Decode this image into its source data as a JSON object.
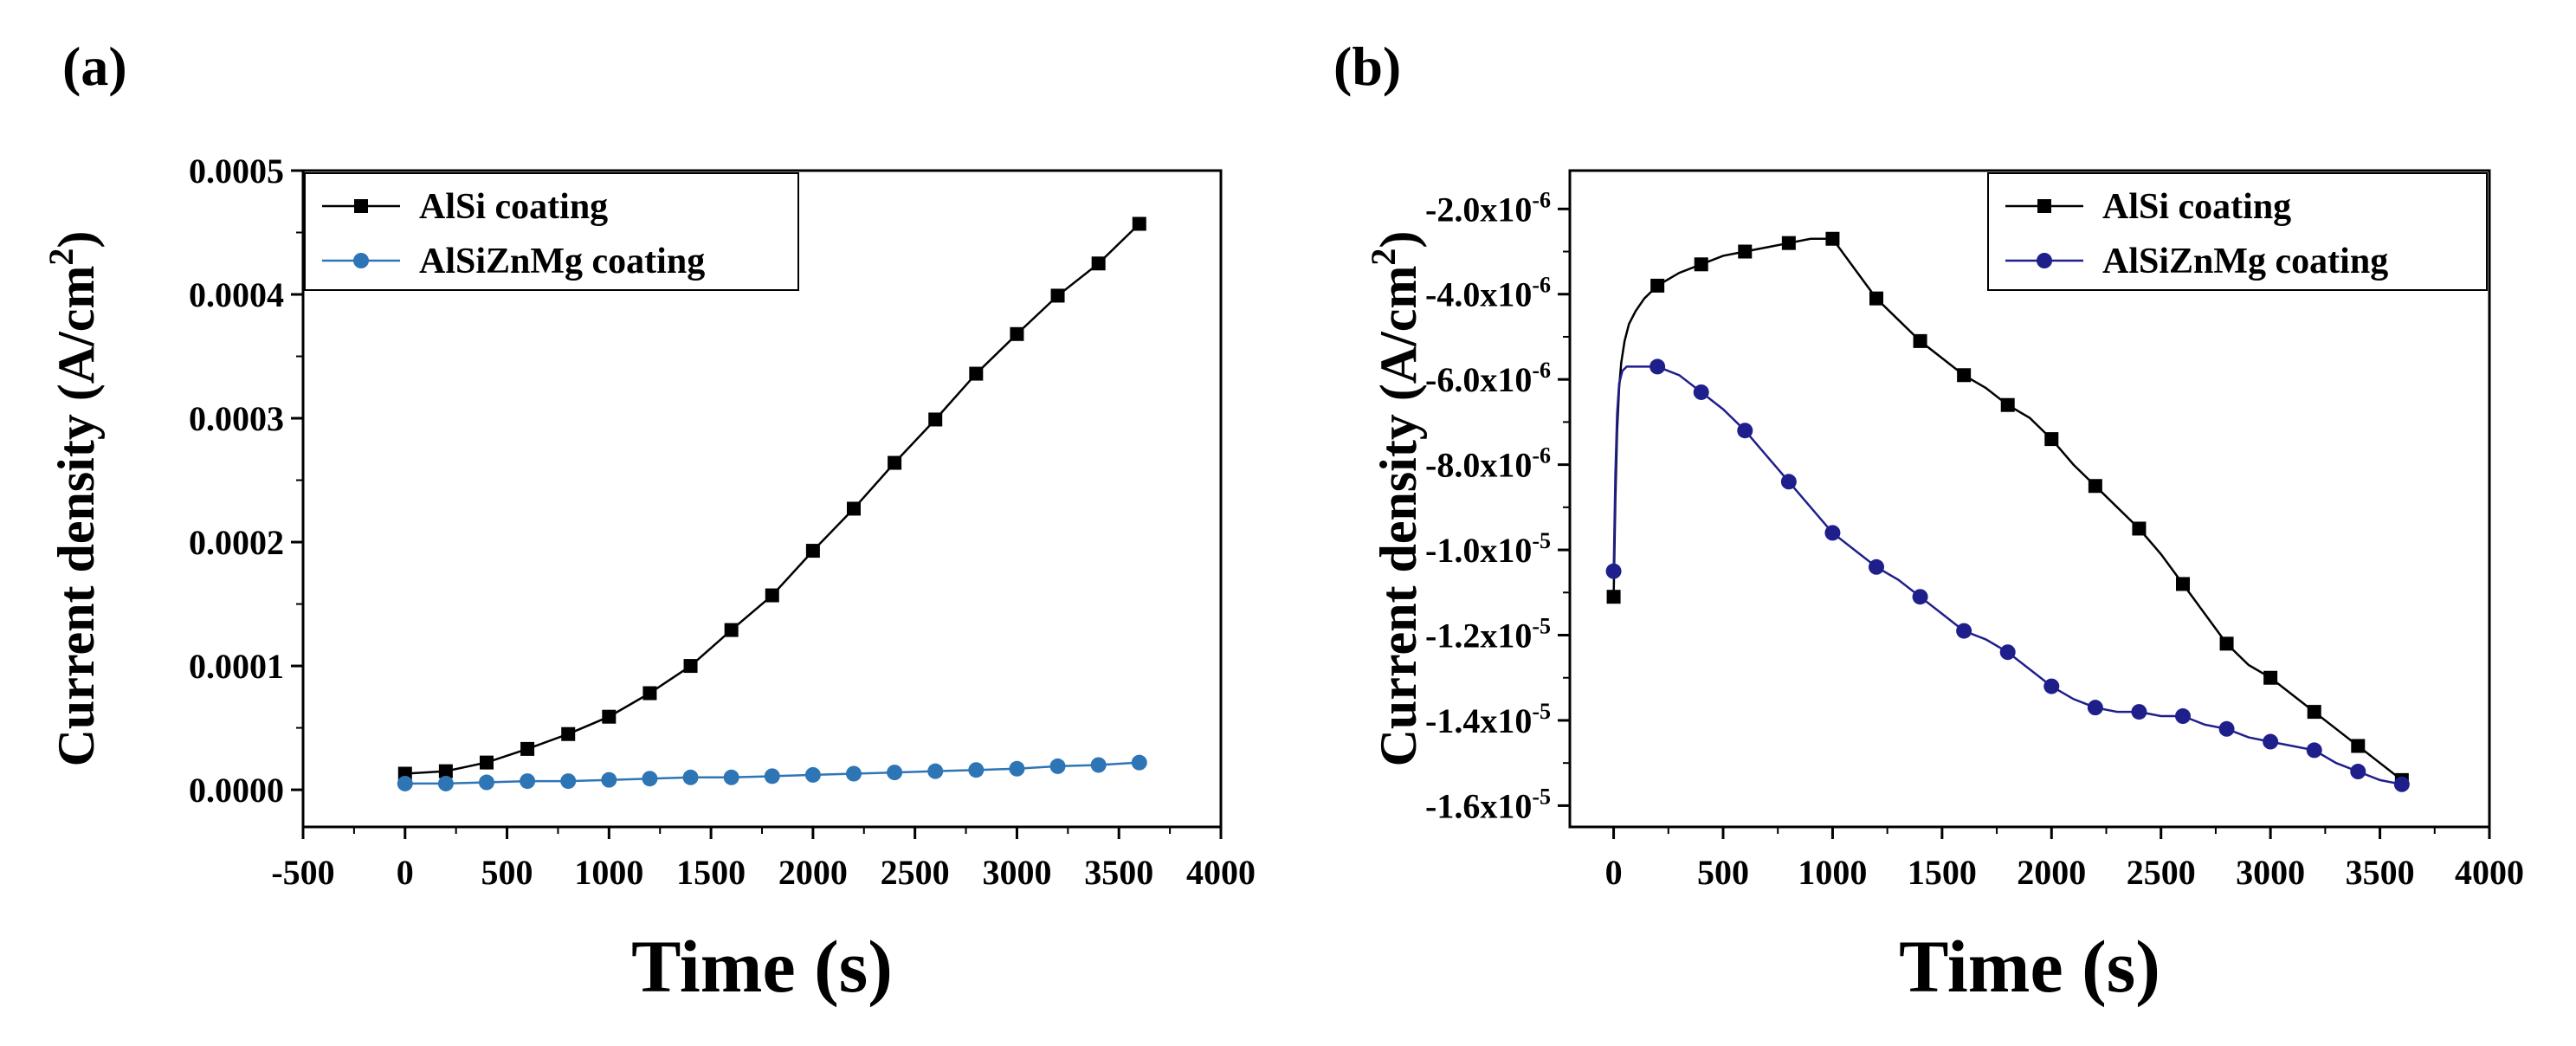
{
  "chart_data": [
    {
      "panel_label": "(a)",
      "type": "line",
      "xlabel": "Time (s)",
      "ylabel": "Current density (A/cm",
      "ylabel_sup": "2",
      "ylabel_close": ")",
      "xlim": [
        -500,
        4000
      ],
      "ylim": [
        -3e-05,
        0.0005
      ],
      "xticks": [
        -500,
        0,
        500,
        1000,
        1500,
        2000,
        2500,
        3000,
        3500,
        4000
      ],
      "xtick_labels": [
        "-500",
        "0",
        "500",
        "1000",
        "1500",
        "2000",
        "2500",
        "3000",
        "3500",
        "4000"
      ],
      "yticks": [
        0,
        0.0001,
        0.0002,
        0.0003,
        0.0004,
        0.0005
      ],
      "ytick_labels": [
        "0.0000",
        "0.0001",
        "0.0002",
        "0.0003",
        "0.0004",
        "0.0005"
      ],
      "legend_position": "top-left",
      "series": [
        {
          "name": "AlSi coating",
          "color": "#000000",
          "marker": "square",
          "x": [
            0,
            200,
            400,
            600,
            800,
            1000,
            1200,
            1400,
            1600,
            1800,
            2000,
            2200,
            2400,
            2600,
            2800,
            3000,
            3200,
            3400,
            3600
          ],
          "y": [
            1.3e-05,
            1.5e-05,
            2.2e-05,
            3.3e-05,
            4.5e-05,
            5.9e-05,
            7.8e-05,
            0.0001,
            0.000129,
            0.000157,
            0.000193,
            0.000227,
            0.000264,
            0.000299,
            0.000336,
            0.000368,
            0.000399,
            0.000425,
            0.000457
          ]
        },
        {
          "name": "AlSiZnMg coating",
          "color": "#2e75b6",
          "marker": "circle",
          "x": [
            0,
            200,
            400,
            600,
            800,
            1000,
            1200,
            1400,
            1600,
            1800,
            2000,
            2200,
            2400,
            2600,
            2800,
            3000,
            3200,
            3400,
            3600
          ],
          "y": [
            5e-06,
            5e-06,
            6e-06,
            7e-06,
            7e-06,
            8e-06,
            9e-06,
            1e-05,
            1e-05,
            1.1e-05,
            1.2e-05,
            1.3e-05,
            1.4e-05,
            1.5e-05,
            1.6e-05,
            1.7e-05,
            1.9e-05,
            2e-05,
            2.2e-05
          ]
        }
      ]
    },
    {
      "panel_label": "(b)",
      "type": "line",
      "xlabel": "Time (s)",
      "ylabel": "Current density (A/cm",
      "ylabel_sup": "2",
      "ylabel_close": ")",
      "xlim": [
        -200,
        4000
      ],
      "ylim": [
        -1.65e-05,
        -1.1e-06
      ],
      "xticks": [
        0,
        500,
        1000,
        1500,
        2000,
        2500,
        3000,
        3500,
        4000
      ],
      "xtick_labels": [
        "0",
        "500",
        "1000",
        "1500",
        "2000",
        "2500",
        "3000",
        "3500",
        "4000"
      ],
      "yticks": [
        -2e-06,
        -4e-06,
        -6e-06,
        -8e-06,
        -1e-05,
        -1.2e-05,
        -1.4e-05,
        -1.6e-05
      ],
      "ytick_mantissa": [
        "-2.0x10",
        "-4.0x10",
        "-6.0x10",
        "-8.0x10",
        "-1.0x10",
        "-1.2x10",
        "-1.4x10",
        "-1.6x10"
      ],
      "ytick_exponent": [
        "-6",
        "-6",
        "-6",
        "-6",
        "-5",
        "-5",
        "-5",
        "-5"
      ],
      "legend_position": "top-right",
      "series": [
        {
          "name": "AlSi coating",
          "color": "#000000",
          "marker": "square",
          "x": [
            0,
            200,
            400,
            600,
            800,
            1000,
            1200,
            1400,
            1600,
            1800,
            2000,
            2200,
            2400,
            2600,
            2800,
            3000,
            3200,
            3400,
            3600
          ],
          "y": [
            -1.11e-05,
            -3.8e-06,
            -3.3e-06,
            -3e-06,
            -2.8e-06,
            -2.7e-06,
            -4.1e-06,
            -5.1e-06,
            -5.9e-06,
            -6.6e-06,
            -7.4e-06,
            -8.5e-06,
            -9.5e-06,
            -1.08e-05,
            -1.22e-05,
            -1.3e-05,
            -1.38e-05,
            -1.46e-05,
            -1.54e-05
          ],
          "curve_x": [
            0,
            8,
            16,
            25,
            35,
            50,
            70,
            100,
            140,
            200,
            300,
            400,
            500,
            600,
            700,
            800,
            900,
            1000,
            1100,
            1200,
            1300,
            1400,
            1500,
            1600,
            1700,
            1800,
            1900,
            2000,
            2100,
            2200,
            2300,
            2400,
            2500,
            2600,
            2700,
            2800,
            2900,
            3000,
            3100,
            3200,
            3300,
            3400,
            3500,
            3600
          ],
          "curve_y": [
            -1.11e-05,
            -8.8e-06,
            -7.2e-06,
            -6.2e-06,
            -5.6e-06,
            -5.1e-06,
            -4.7e-06,
            -4.4e-06,
            -4.1e-06,
            -3.8e-06,
            -3.5e-06,
            -3.3e-06,
            -3.1e-06,
            -3e-06,
            -2.9e-06,
            -2.8e-06,
            -2.7e-06,
            -2.7e-06,
            -3.4e-06,
            -4.1e-06,
            -4.6e-06,
            -5.1e-06,
            -5.5e-06,
            -5.9e-06,
            -6.2e-06,
            -6.6e-06,
            -6.9e-06,
            -7.4e-06,
            -8e-06,
            -8.5e-06,
            -9e-06,
            -9.5e-06,
            -1.01e-05,
            -1.08e-05,
            -1.15e-05,
            -1.22e-05,
            -1.27e-05,
            -1.3e-05,
            -1.34e-05,
            -1.38e-05,
            -1.42e-05,
            -1.46e-05,
            -1.5e-05,
            -1.54e-05
          ]
        },
        {
          "name": "AlSiZnMg coating",
          "color": "#1f1f8c",
          "marker": "circle",
          "x": [
            0,
            200,
            400,
            600,
            800,
            1000,
            1200,
            1400,
            1600,
            1800,
            2000,
            2200,
            2400,
            2600,
            2800,
            3000,
            3200,
            3400,
            3600
          ],
          "y": [
            -1.05e-05,
            -5.7e-06,
            -6.3e-06,
            -7.2e-06,
            -8.4e-06,
            -9.6e-06,
            -1.04e-05,
            -1.11e-05,
            -1.19e-05,
            -1.24e-05,
            -1.32e-05,
            -1.37e-05,
            -1.38e-05,
            -1.39e-05,
            -1.42e-05,
            -1.45e-05,
            -1.47e-05,
            -1.52e-05,
            -1.55e-05
          ],
          "curve_x": [
            0,
            8,
            16,
            25,
            40,
            60,
            100,
            150,
            200,
            300,
            400,
            500,
            600,
            700,
            800,
            900,
            1000,
            1100,
            1200,
            1300,
            1400,
            1500,
            1600,
            1700,
            1800,
            1900,
            2000,
            2100,
            2200,
            2300,
            2400,
            2500,
            2600,
            2700,
            2800,
            2900,
            3000,
            3100,
            3200,
            3300,
            3400,
            3500,
            3600
          ],
          "curve_y": [
            -1.05e-05,
            -8.2e-06,
            -6.8e-06,
            -6.1e-06,
            -5.8e-06,
            -5.7e-06,
            -5.7e-06,
            -5.7e-06,
            -5.7e-06,
            -5.9e-06,
            -6.3e-06,
            -6.7e-06,
            -7.2e-06,
            -7.8e-06,
            -8.4e-06,
            -9e-06,
            -9.6e-06,
            -1e-05,
            -1.04e-05,
            -1.07e-05,
            -1.11e-05,
            -1.15e-05,
            -1.19e-05,
            -1.21e-05,
            -1.24e-05,
            -1.28e-05,
            -1.32e-05,
            -1.35e-05,
            -1.37e-05,
            -1.38e-05,
            -1.38e-05,
            -1.39e-05,
            -1.39e-05,
            -1.41e-05,
            -1.42e-05,
            -1.44e-05,
            -1.45e-05,
            -1.46e-05,
            -1.47e-05,
            -1.5e-05,
            -1.52e-05,
            -1.54e-05,
            -1.55e-05
          ]
        }
      ]
    }
  ]
}
